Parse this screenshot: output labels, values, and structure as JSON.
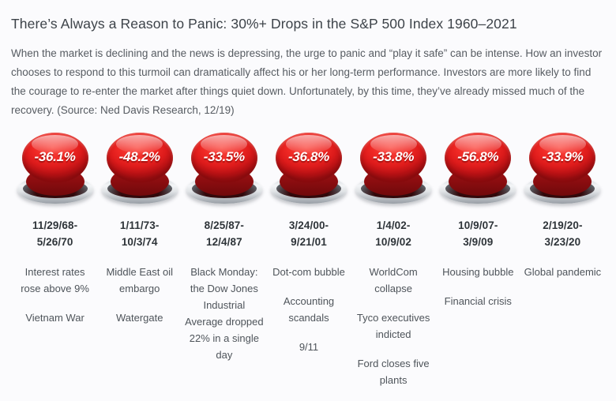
{
  "page": {
    "title": "There’s Always a Reason to Panic: 30%+ Drops in the S&P 500 Index 1960–2021",
    "intro": "When the market is declining and the news is depressing, the urge to panic and “play it safe” can be intense. How an investor chooses to respond to this turmoil can dramatically affect his or her long-term performance. Investors are more likely to find the courage to re-enter the market after things quiet down. Unfortunately, by this time, they’ve already missed much of the recovery. (Source: Ned Davis Research, 12/19)"
  },
  "colors": {
    "button_red": "#dd1b1b",
    "button_dark_red": "#8c0f10",
    "base_silver": "#b9bdc2",
    "title_text": "#3d4349",
    "body_text": "#575c62",
    "date_text": "#2e3439",
    "background": "#fbfbfd"
  },
  "columns": [
    {
      "drop": "-36.1%",
      "date": [
        "11/29/68-",
        "5/26/70"
      ],
      "events": [
        "Interest rates rose above 9%",
        "Vietnam War"
      ]
    },
    {
      "drop": "-48.2%",
      "date": [
        "1/11/73-",
        "10/3/74"
      ],
      "events": [
        "Middle East oil embargo",
        "Watergate"
      ]
    },
    {
      "drop": "-33.5%",
      "date": [
        "8/25/87-",
        "12/4/87"
      ],
      "events": [
        "Black Monday: the Dow Jones Industrial Average dropped 22% in a single day"
      ]
    },
    {
      "drop": "-36.8%",
      "date": [
        "3/24/00-",
        "9/21/01"
      ],
      "events": [
        "Dot-com bubble",
        "Accounting scandals",
        "9/11"
      ]
    },
    {
      "drop": "-33.8%",
      "date": [
        "1/4/02-",
        "10/9/02"
      ],
      "events": [
        "WorldCom collapse",
        "Tyco executives indicted",
        "Ford closes five plants"
      ]
    },
    {
      "drop": "-56.8%",
      "date": [
        "10/9/07-",
        "3/9/09"
      ],
      "events": [
        "Housing bubble",
        "Financial crisis"
      ]
    },
    {
      "drop": "-33.9%",
      "date": [
        "2/19/20-",
        "3/23/20"
      ],
      "events": [
        "Global pandemic"
      ]
    }
  ],
  "chart_data": {
    "type": "table",
    "title": "There’s Always a Reason to Panic: 30%+ Drops in the S&P 500 Index 1960–2021",
    "categories": [
      "11/29/68-5/26/70",
      "1/11/73-10/3/74",
      "8/25/87-12/4/87",
      "3/24/00-9/21/01",
      "1/4/02-10/9/02",
      "10/9/07-3/9/09",
      "2/19/20-3/23/20"
    ],
    "values": [
      -36.1,
      -48.2,
      -33.5,
      -36.8,
      -33.8,
      -56.8,
      -33.9
    ],
    "value_labels": [
      "-36.1%",
      "-48.2%",
      "-33.5%",
      "-36.8%",
      "-33.8%",
      "-56.8%",
      "-33.9%"
    ],
    "annotations": [
      [
        "Interest rates rose above 9%",
        "Vietnam War"
      ],
      [
        "Middle East oil embargo",
        "Watergate"
      ],
      [
        "Black Monday: the Dow Jones Industrial Average dropped 22% in a single day"
      ],
      [
        "Dot-com bubble",
        "Accounting scandals",
        "9/11"
      ],
      [
        "WorldCom collapse",
        "Tyco executives indicted",
        "Ford closes five plants"
      ],
      [
        "Housing bubble",
        "Financial crisis"
      ],
      [
        "Global pandemic"
      ]
    ],
    "source": "Ned Davis Research, 12/19"
  }
}
